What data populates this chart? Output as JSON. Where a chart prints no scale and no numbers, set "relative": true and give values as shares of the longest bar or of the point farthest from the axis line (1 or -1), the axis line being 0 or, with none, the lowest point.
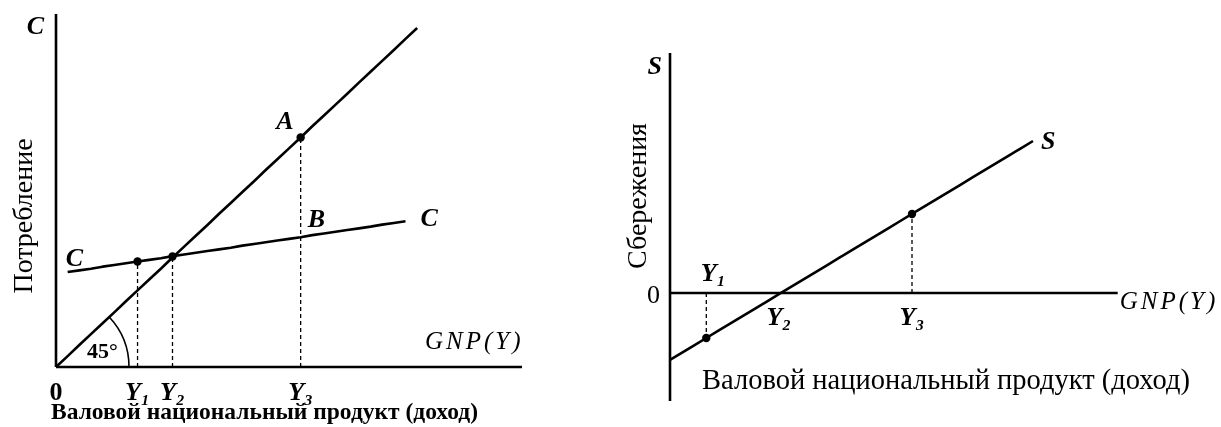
{
  "chart_data": [
    {
      "type": "line",
      "relative": true,
      "xlabel": "Валовой национальный продукт (доход)",
      "ylabel": "Потребление",
      "categories": [
        "0",
        null,
        null,
        null,
        null,
        null,
        null,
        "Y₁",
        null,
        null,
        "Y₂",
        null,
        null,
        null,
        null,
        null,
        null,
        null,
        null,
        null,
        null,
        "Y₃",
        null,
        null,
        null,
        null,
        null,
        null,
        null,
        null,
        null,
        null,
        null,
        null,
        null,
        null,
        null,
        null,
        null,
        null,
        null
      ],
      "series": [
        {
          "color": "#000000",
          "values": [
            0,
            0.032,
            0.065,
            0.097,
            0.129,
            0.161,
            0.194,
            0.226,
            0.258,
            0.29,
            0.323,
            0.355,
            0.387,
            0.419,
            0.452,
            0.484,
            0.516,
            0.548,
            0.581,
            0.613,
            0.645,
            0.677,
            0.71,
            0.742,
            0.774,
            0.806,
            0.839,
            0.871,
            0.903,
            0.935,
            0.968,
            1,
            null,
            null,
            null,
            null,
            null,
            null,
            null,
            null,
            null
          ]
        },
        {
          "name": "C",
          "color": "#000000",
          "values": [
            null,
            0.28,
            0.285,
            0.29,
            0.296,
            0.301,
            0.306,
            0.311,
            0.316,
            0.321,
            0.327,
            0.332,
            0.337,
            0.342,
            0.347,
            0.352,
            0.358,
            0.363,
            0.368,
            0.373,
            0.378,
            0.383,
            0.389,
            0.394,
            0.399,
            0.404,
            0.409,
            0.414,
            0.42,
            0.425,
            0.43,
            null,
            null,
            null,
            null,
            null,
            null,
            null,
            null,
            null,
            null
          ]
        },
        {
          "type": "lollipop",
          "marker": "circle",
          "line_style": "dashed",
          "color": "#000000",
          "values": [
            null,
            null,
            null,
            null,
            null,
            null,
            null,
            0.311,
            null,
            null,
            0.326,
            null,
            null,
            null,
            null,
            null,
            null,
            null,
            null,
            null,
            null,
            0.677,
            null,
            null,
            null,
            null,
            null,
            null,
            null,
            null,
            null,
            null,
            null,
            null,
            null,
            null,
            null,
            null,
            null,
            null,
            null
          ]
        }
      ],
      "annotations": [
        "C",
        "GNP(Y)",
        {
          "text": "A",
          "x": "Y₃",
          "y": 0.677
        },
        {
          "text": "B",
          "x": "Y₃",
          "y": 0.383
        },
        {
          "text": "45°",
          "x": "0",
          "y": 0
        }
      ]
    },
    {
      "type": "line",
      "relative": true,
      "xlabel": "Валовой национальный продукт (доход)",
      "ylabel": "Сбережения",
      "categories": [
        null,
        null,
        null,
        null,
        null,
        null,
        null,
        null,
        null,
        "Y₂",
        null,
        null,
        null,
        null,
        null,
        null,
        null,
        null,
        null,
        null,
        "Y₃",
        null,
        null,
        null,
        null,
        null,
        null,
        null,
        null,
        null,
        null,
        null,
        null,
        null,
        null,
        null,
        null,
        null
      ],
      "series": [
        {
          "name": "S",
          "color": "#000000",
          "values": [
            -0.44,
            -0.392,
            -0.344,
            -0.296,
            -0.248,
            -0.2,
            -0.152,
            -0.104,
            -0.056,
            -0.008,
            0.04,
            0.088,
            0.136,
            0.184,
            0.232,
            0.28,
            0.328,
            0.376,
            0.424,
            0.472,
            0.52,
            0.568,
            0.616,
            0.664,
            0.712,
            0.76,
            0.808,
            0.856,
            0.904,
            0.952,
            1,
            null,
            null,
            null,
            null,
            null,
            null,
            null
          ]
        },
        {
          "type": "lollipop",
          "marker": "circle",
          "line_style": "dashed",
          "color": "#000000",
          "values": [
            null,
            null,
            null,
            -0.296,
            null,
            null,
            null,
            null,
            null,
            null,
            null,
            null,
            null,
            null,
            null,
            null,
            null,
            null,
            null,
            null,
            0.52,
            null,
            null,
            null,
            null,
            null,
            null,
            null,
            null,
            null,
            null,
            null,
            null,
            null,
            null,
            null,
            null,
            null
          ]
        }
      ],
      "annotations": [
        "S",
        "GNP(Y)",
        "0",
        "Y₁"
      ]
    }
  ]
}
